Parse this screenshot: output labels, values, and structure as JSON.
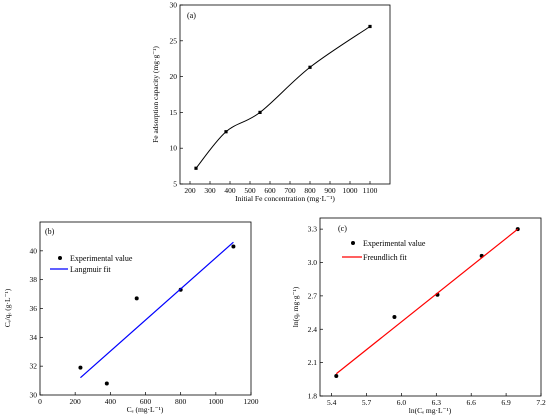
{
  "chart_data": [
    {
      "type": "line",
      "panel_label": "(a)",
      "xlabel": "Initial Fe concentration (mg·L⁻¹)",
      "ylabel": "Fe adsorption capacity (mg·g⁻¹)",
      "xlim": [
        150,
        1200
      ],
      "ylim": [
        5,
        30
      ],
      "xticks": [
        200,
        300,
        400,
        500,
        600,
        700,
        800,
        900,
        1000,
        1100
      ],
      "yticks": [
        5,
        10,
        15,
        20,
        25,
        30
      ],
      "grid": false,
      "series": [
        {
          "x": [
            230,
            380,
            550,
            800,
            1100
          ],
          "y": [
            7.2,
            12.3,
            15.0,
            21.3,
            27.0
          ],
          "style": "smooth line with black square markers",
          "color": "#000000"
        }
      ]
    },
    {
      "type": "scatter",
      "panel_label": "(b)",
      "xlabel": "Cₑ (mg·L⁻¹)",
      "ylabel": "Cₑ/qₑ (g·L⁻¹)",
      "xlim": [
        0,
        1200
      ],
      "ylim": [
        30,
        42
      ],
      "xticks": [
        0,
        200,
        400,
        600,
        800,
        1000,
        1200
      ],
      "yticks": [
        30,
        32,
        34,
        36,
        38,
        40
      ],
      "grid": false,
      "legend_position": "top-left",
      "series": [
        {
          "name": "Experimental value",
          "style": "points",
          "color": "#000000",
          "x": [
            230,
            380,
            550,
            800,
            1100
          ],
          "y": [
            31.9,
            30.8,
            36.7,
            37.3,
            40.3
          ]
        },
        {
          "name": "Langmuir fit",
          "style": "line",
          "color": "#0000ff",
          "x": [
            230,
            1100
          ],
          "y": [
            31.2,
            40.6
          ]
        }
      ]
    },
    {
      "type": "scatter",
      "panel_label": "(c)",
      "xlabel": "ln(Cₑ mg·L⁻¹)",
      "ylabel": "ln(qₑ mg·g⁻¹)",
      "xlim": [
        5.3,
        7.2
      ],
      "ylim": [
        1.8,
        3.4
      ],
      "xticks": [
        5.4,
        5.7,
        6.0,
        6.3,
        6.6,
        6.9,
        7.2
      ],
      "yticks": [
        1.8,
        2.1,
        2.4,
        2.7,
        3.0,
        3.3
      ],
      "grid": false,
      "legend_position": "top-left",
      "series": [
        {
          "name": "Experimental value",
          "style": "points",
          "color": "#000000",
          "x": [
            5.44,
            5.94,
            6.31,
            6.69,
            7.0
          ],
          "y": [
            1.98,
            2.51,
            2.71,
            3.06,
            3.3
          ]
        },
        {
          "name": "Freundlich fit",
          "style": "line",
          "color": "#ff0000",
          "x": [
            5.44,
            7.0
          ],
          "y": [
            2.0,
            3.3
          ]
        }
      ]
    }
  ]
}
